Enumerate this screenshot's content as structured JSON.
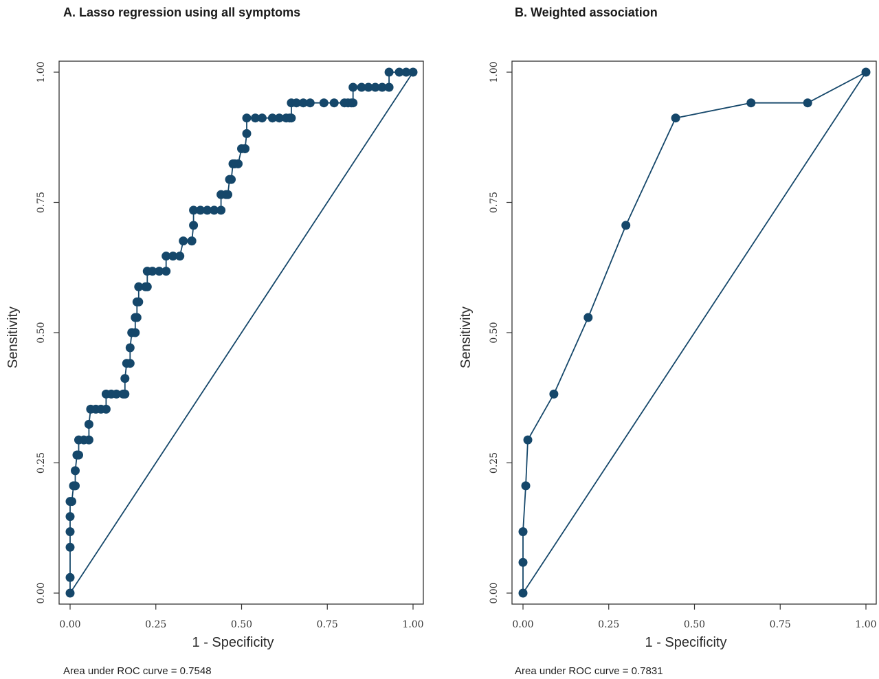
{
  "chart_data": [
    {
      "type": "line",
      "title": "A. Lasso regression using all symptoms",
      "xlabel": "1 - Specificity",
      "ylabel": "Sensitivity",
      "xlim": [
        0,
        1
      ],
      "ylim": [
        0,
        1
      ],
      "x_ticks": [
        "0.00",
        "0.25",
        "0.50",
        "0.75",
        "1.00"
      ],
      "y_ticks": [
        "0.00",
        "0.25",
        "0.50",
        "0.75",
        "1.00"
      ],
      "annotation": "Area under ROC curve = 0.7548",
      "reference_line": [
        [
          0,
          0
        ],
        [
          1,
          1
        ]
      ],
      "color": "#15476a",
      "series": [
        {
          "x": [
            0.0,
            0.0,
            0.0,
            0.0,
            0.0,
            0.0,
            0.005,
            0.01,
            0.015,
            0.015,
            0.02,
            0.02,
            0.025,
            0.025,
            0.04,
            0.055,
            0.055,
            0.06,
            0.075,
            0.09,
            0.105,
            0.105,
            0.12,
            0.135,
            0.155,
            0.16,
            0.16,
            0.165,
            0.175,
            0.175,
            0.18,
            0.18,
            0.19,
            0.19,
            0.195,
            0.195,
            0.2,
            0.2,
            0.22,
            0.225,
            0.225,
            0.24,
            0.26,
            0.28,
            0.28,
            0.3,
            0.32,
            0.33,
            0.355,
            0.355,
            0.36,
            0.36,
            0.38,
            0.4,
            0.42,
            0.44,
            0.44,
            0.455,
            0.46,
            0.465,
            0.47,
            0.475,
            0.48,
            0.49,
            0.5,
            0.51,
            0.51,
            0.515,
            0.515,
            0.54,
            0.56,
            0.59,
            0.61,
            0.63,
            0.64,
            0.645,
            0.645,
            0.66,
            0.68,
            0.7,
            0.74,
            0.77,
            0.8,
            0.81,
            0.82,
            0.825,
            0.825,
            0.85,
            0.87,
            0.89,
            0.91,
            0.93,
            0.93,
            0.96,
            0.98,
            1.0
          ],
          "y": [
            0.0,
            0.03,
            0.088,
            0.118,
            0.147,
            0.176,
            0.176,
            0.206,
            0.206,
            0.235,
            0.265,
            0.265,
            0.265,
            0.294,
            0.294,
            0.294,
            0.324,
            0.353,
            0.353,
            0.353,
            0.353,
            0.382,
            0.382,
            0.382,
            0.382,
            0.382,
            0.412,
            0.441,
            0.441,
            0.471,
            0.5,
            0.5,
            0.5,
            0.529,
            0.529,
            0.559,
            0.559,
            0.588,
            0.588,
            0.588,
            0.618,
            0.618,
            0.618,
            0.618,
            0.647,
            0.647,
            0.647,
            0.676,
            0.676,
            0.676,
            0.706,
            0.735,
            0.735,
            0.735,
            0.735,
            0.735,
            0.765,
            0.765,
            0.765,
            0.794,
            0.794,
            0.824,
            0.824,
            0.824,
            0.853,
            0.853,
            0.853,
            0.882,
            0.912,
            0.912,
            0.912,
            0.912,
            0.912,
            0.912,
            0.912,
            0.912,
            0.941,
            0.941,
            0.941,
            0.941,
            0.941,
            0.941,
            0.941,
            0.941,
            0.941,
            0.941,
            0.971,
            0.971,
            0.971,
            0.971,
            0.971,
            0.971,
            1.0,
            1.0,
            1.0,
            1.0
          ]
        }
      ]
    },
    {
      "type": "line",
      "title": "B. Weighted association",
      "xlabel": "1 - Specificity",
      "ylabel": "Sensitivity",
      "xlim": [
        0,
        1
      ],
      "ylim": [
        0,
        1
      ],
      "x_ticks": [
        "0.00",
        "0.25",
        "0.50",
        "0.75",
        "1.00"
      ],
      "y_ticks": [
        "0.00",
        "0.25",
        "0.50",
        "0.75",
        "1.00"
      ],
      "annotation": "Area under ROC curve = 0.7831",
      "reference_line": [
        [
          0,
          0
        ],
        [
          1,
          1
        ]
      ],
      "color": "#15476a",
      "series": [
        {
          "x": [
            0.0,
            0.0,
            0.0,
            0.008,
            0.014,
            0.09,
            0.19,
            0.3,
            0.445,
            0.665,
            0.83,
            1.0
          ],
          "y": [
            0.0,
            0.059,
            0.118,
            0.206,
            0.294,
            0.382,
            0.529,
            0.706,
            0.912,
            0.941,
            0.941,
            1.0
          ]
        }
      ]
    }
  ]
}
